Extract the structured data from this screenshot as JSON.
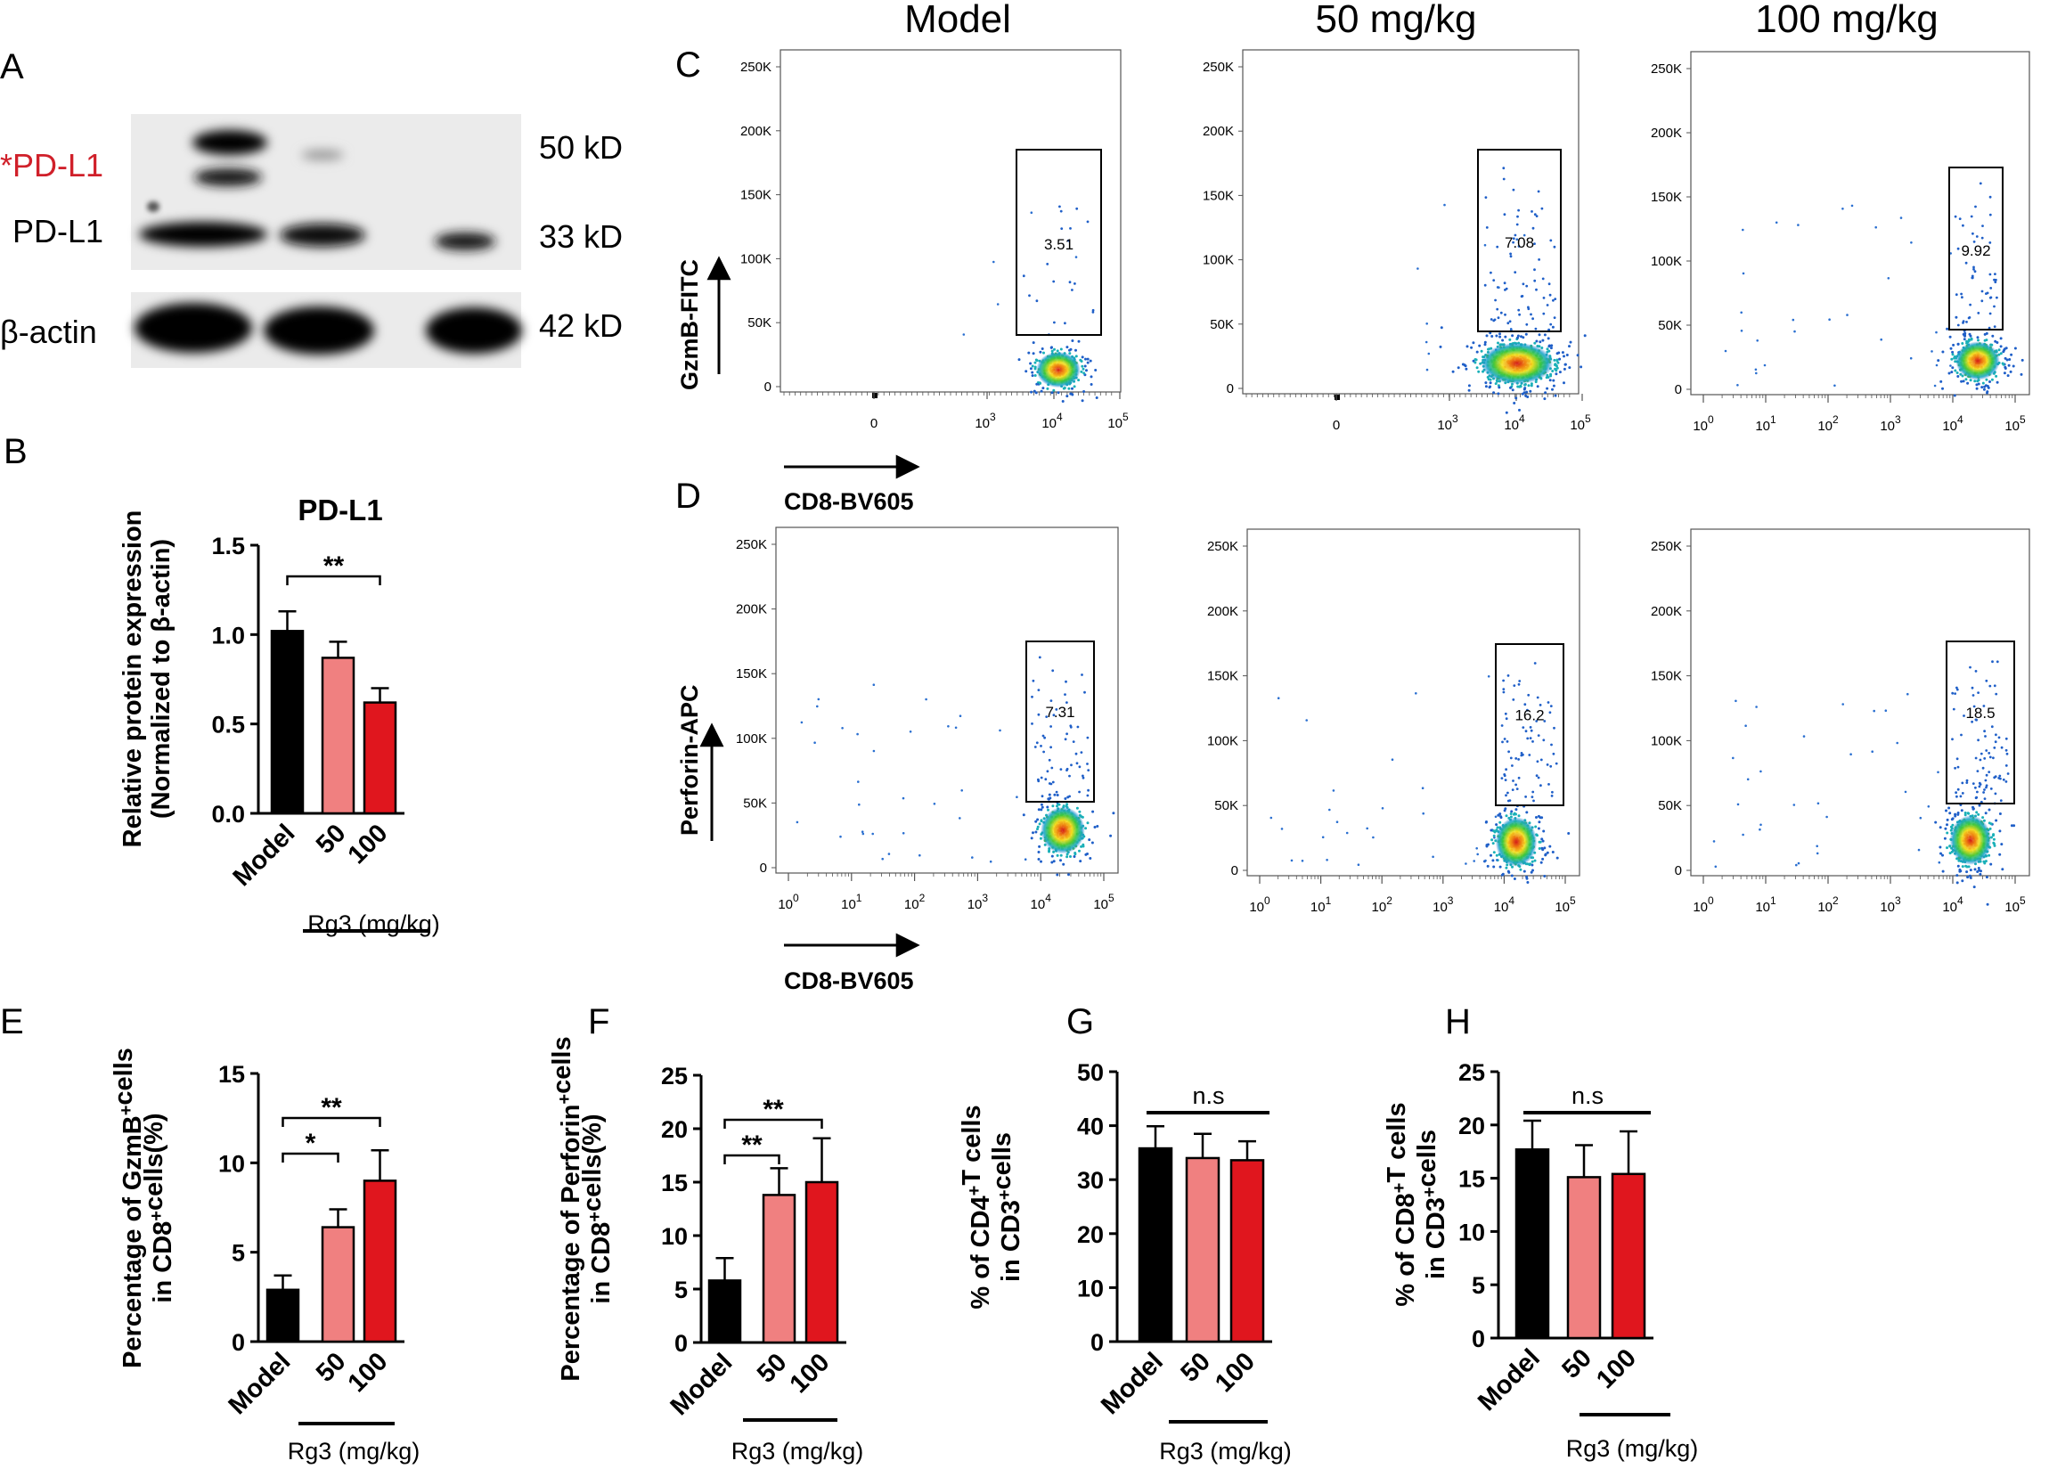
{
  "figure": {
    "panel_letters": [
      "A",
      "B",
      "C",
      "D",
      "E",
      "F",
      "G",
      "H"
    ],
    "column_titles": [
      "Model",
      "50 mg/kg",
      "100 mg/kg"
    ]
  },
  "western_blot": {
    "labels": {
      "pdl1_glyco": "*PD-L1",
      "pdl1": "PD-L1",
      "actin": "β-actin",
      "kd_50": "50 kD",
      "kd_33": "33 kD",
      "kd_42": "42 kD"
    },
    "colors": {
      "glyco_label": "#d0202a"
    }
  },
  "flow": {
    "x_label": "CD8-BV605",
    "y_label_c": "GzmB-FITC",
    "y_label_d": "Perforin-APC",
    "y_ticks": [
      "250K",
      "200K",
      "150K",
      "100K",
      "50K",
      "0"
    ],
    "x_ticks_c_linear_zero": [
      "0",
      "10^3",
      "10^4",
      "10^5"
    ],
    "x_ticks_log": [
      "10^0",
      "10^1",
      "10^2",
      "10^3",
      "10^4",
      "10^5"
    ],
    "gate_values_c": [
      "3.51",
      "7.08",
      "9.92"
    ],
    "gate_values_d": [
      "7.31",
      "16.2",
      "18.5"
    ]
  },
  "chart_data": [
    {
      "panel": "B",
      "type": "bar",
      "title": "PD-L1",
      "categories": [
        "Model",
        "50",
        "100"
      ],
      "values": [
        1.02,
        0.87,
        0.62
      ],
      "errors": [
        0.11,
        0.09,
        0.08
      ],
      "ylabel": "Relative protein expression (Normalized to β-actin)",
      "ylabel_lines": [
        "Relative protein expression",
        "(Normalized to β-actin)"
      ],
      "xgroup_label": "Rg3 (mg/kg)",
      "ylim": [
        0,
        1.5
      ],
      "yticks": [
        "0.0",
        "0.5",
        "1.0",
        "1.5"
      ],
      "colors": [
        "#000000",
        "#f08080",
        "#e0161e"
      ],
      "significance": [
        {
          "from": 0,
          "to": 2,
          "label": "**"
        }
      ]
    },
    {
      "panel": "E",
      "type": "bar",
      "categories": [
        "Model",
        "50",
        "100"
      ],
      "values": [
        2.9,
        6.4,
        9.0
      ],
      "errors": [
        0.8,
        1.0,
        1.7
      ],
      "ylabel": "Percentage of GzmB+cells in CD8+cells(%)",
      "xgroup_label": "Rg3 (mg/kg)",
      "ylim": [
        0,
        15
      ],
      "yticks": [
        "0",
        "5",
        "10",
        "15"
      ],
      "colors": [
        "#000000",
        "#f08080",
        "#e0161e"
      ],
      "significance": [
        {
          "from": 0,
          "to": 1,
          "label": "*"
        },
        {
          "from": 0,
          "to": 2,
          "label": "**"
        }
      ]
    },
    {
      "panel": "F",
      "type": "bar",
      "categories": [
        "Model",
        "50",
        "100"
      ],
      "values": [
        5.8,
        13.8,
        15.0
      ],
      "errors": [
        2.1,
        2.5,
        4.1
      ],
      "ylabel": "Percentage of Perforin+cells in CD8+cells(%)",
      "xgroup_label": "Rg3 (mg/kg)",
      "ylim": [
        0,
        25
      ],
      "yticks": [
        "0",
        "5",
        "10",
        "15",
        "20",
        "25"
      ],
      "colors": [
        "#000000",
        "#f08080",
        "#e0161e"
      ],
      "significance": [
        {
          "from": 0,
          "to": 1,
          "label": "**"
        },
        {
          "from": 0,
          "to": 2,
          "label": "**"
        }
      ]
    },
    {
      "panel": "G",
      "type": "bar",
      "categories": [
        "Model",
        "50",
        "100"
      ],
      "values": [
        35.8,
        34.0,
        33.6
      ],
      "errors": [
        4.1,
        4.5,
        3.5
      ],
      "ylabel": "% of CD4+T cells in CD3+cells",
      "xgroup_label": "Rg3 (mg/kg)",
      "ylim": [
        0,
        50
      ],
      "yticks": [
        "0",
        "10",
        "20",
        "30",
        "40",
        "50"
      ],
      "colors": [
        "#000000",
        "#f08080",
        "#e0161e"
      ],
      "significance": [
        {
          "from": 0,
          "to": 2,
          "label": "n.s"
        }
      ]
    },
    {
      "panel": "H",
      "type": "bar",
      "categories": [
        "Model",
        "50",
        "100"
      ],
      "values": [
        17.7,
        15.1,
        15.4
      ],
      "errors": [
        2.7,
        3.0,
        4.0
      ],
      "ylabel": "% of CD8+T cells in CD3+cells",
      "xgroup_label": "Rg3 (mg/kg)",
      "ylim": [
        0,
        25
      ],
      "yticks": [
        "0",
        "5",
        "10",
        "15",
        "20",
        "25"
      ],
      "colors": [
        "#000000",
        "#f08080",
        "#e0161e"
      ],
      "significance": [
        {
          "from": 0,
          "to": 2,
          "label": "n.s"
        }
      ]
    }
  ]
}
